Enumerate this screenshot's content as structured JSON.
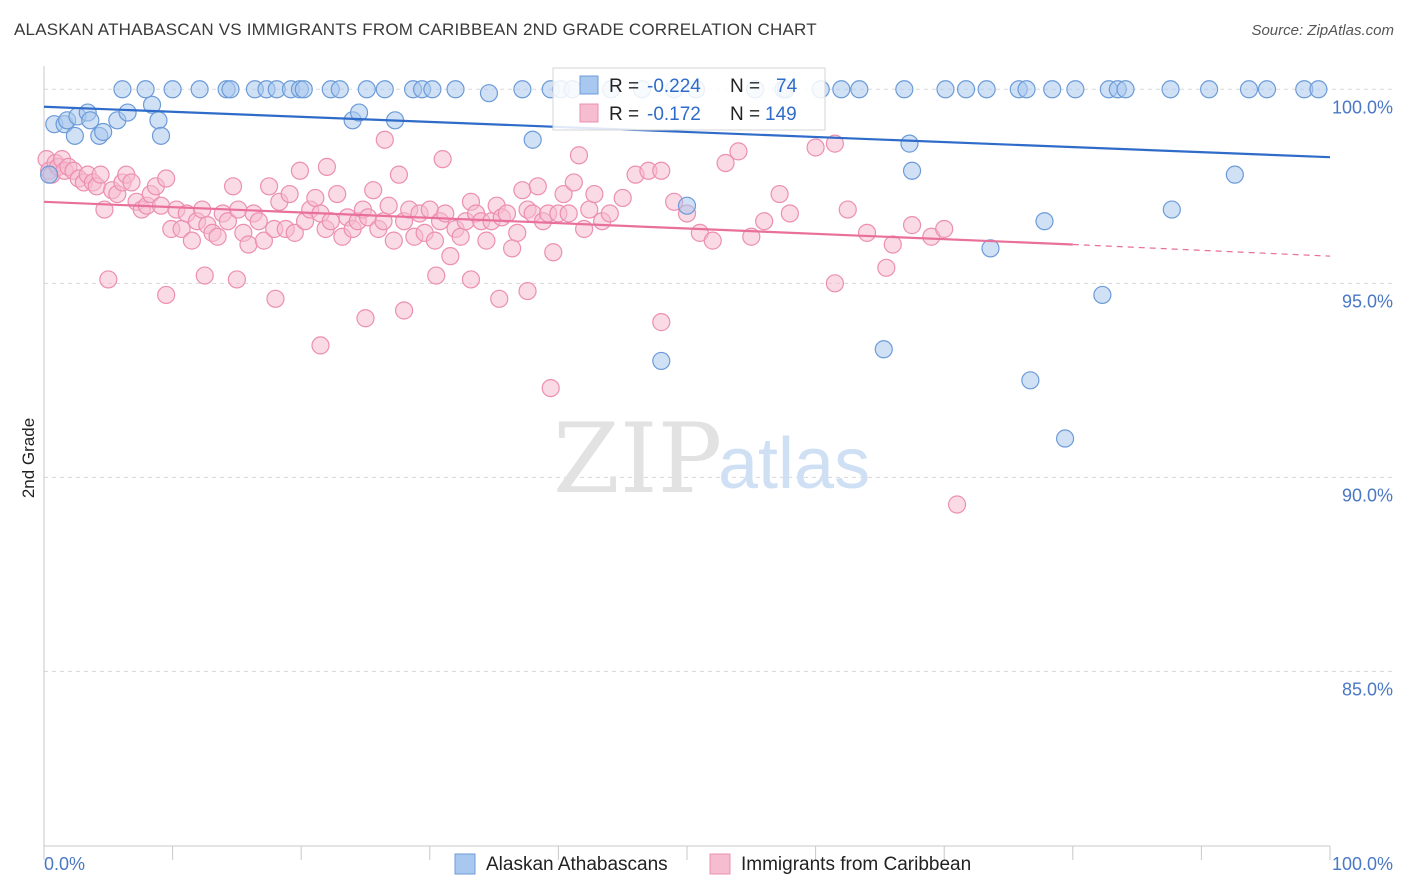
{
  "title": "ALASKAN ATHABASCAN VS IMMIGRANTS FROM CARIBBEAN 2ND GRADE CORRELATION CHART",
  "source": "Source: ZipAtlas.com",
  "watermark": {
    "zip": "ZIP",
    "atlas": "atlas"
  },
  "colors": {
    "blue_fill": "#a9c8ef",
    "blue_stroke": "#6c9bd8",
    "blue_line": "#2f6cc9",
    "pink_fill": "#f6bcd0",
    "pink_stroke": "#ec8fb0",
    "pink_line": "#e8709a",
    "tick_label": "#4a78c4",
    "grid": "#d8d8d8"
  },
  "legend_box": {
    "rows": [
      {
        "r_label": "R =",
        "r_value": "-0.224",
        "n_label": "N =",
        "n_value": "74"
      },
      {
        "r_label": "R =",
        "r_value": "-0.172",
        "n_label": "N =",
        "n_value": "149"
      }
    ]
  },
  "bottom_legend": [
    "Alaskan Athabascans",
    "Immigrants from Caribbean"
  ],
  "chart_data": {
    "type": "scatter",
    "title": "ALASKAN ATHABASCAN VS IMMIGRANTS FROM CARIBBEAN 2ND GRADE CORRELATION CHART",
    "xlabel": "",
    "ylabel": "2nd Grade",
    "xlim": [
      0,
      100
    ],
    "ylim": [
      80.5,
      100.6
    ],
    "x_tick_labels": [
      "0.0%",
      "100.0%"
    ],
    "y_ticks": [
      85,
      90,
      95,
      100
    ],
    "y_tick_labels": [
      "85.0%",
      "90.0%",
      "95.0%",
      "100.0%"
    ],
    "grid": "horizontal dashed",
    "legend_position": "top-center",
    "series": [
      {
        "name": "Alaskan Athabascans",
        "stats": {
          "R": -0.224,
          "N": 74
        },
        "trend": {
          "x": [
            0,
            100
          ],
          "y": [
            99.55,
            98.25
          ]
        },
        "points": [
          [
            0.4,
            97.8
          ],
          [
            0.8,
            99.1
          ],
          [
            1.6,
            99.1
          ],
          [
            1.8,
            99.2
          ],
          [
            2.4,
            98.8
          ],
          [
            2.6,
            99.3
          ],
          [
            3.4,
            99.4
          ],
          [
            3.6,
            99.2
          ],
          [
            4.3,
            98.8
          ],
          [
            4.6,
            98.9
          ],
          [
            5.7,
            99.2
          ],
          [
            6.5,
            99.4
          ],
          [
            8.4,
            99.6
          ],
          [
            8.9,
            99.2
          ],
          [
            9.1,
            98.8
          ],
          [
            6.1,
            100
          ],
          [
            7.9,
            100
          ],
          [
            10.0,
            100
          ],
          [
            12.1,
            100
          ],
          [
            14.2,
            100
          ],
          [
            14.5,
            100
          ],
          [
            16.4,
            100
          ],
          [
            17.3,
            100
          ],
          [
            18.1,
            100
          ],
          [
            19.2,
            100
          ],
          [
            19.9,
            100
          ],
          [
            20.2,
            100
          ],
          [
            22.3,
            100
          ],
          [
            23.0,
            100
          ],
          [
            24.0,
            99.2
          ],
          [
            24.5,
            99.4
          ],
          [
            25.1,
            100
          ],
          [
            26.5,
            100
          ],
          [
            27.3,
            99.2
          ],
          [
            28.7,
            100
          ],
          [
            29.4,
            100
          ],
          [
            30.2,
            100
          ],
          [
            32.0,
            100
          ],
          [
            34.6,
            99.9
          ],
          [
            37.2,
            100
          ],
          [
            38.0,
            98.7
          ],
          [
            39.4,
            100
          ],
          [
            40.2,
            100
          ],
          [
            41.1,
            100
          ],
          [
            44.1,
            100
          ],
          [
            46.5,
            100
          ],
          [
            49.0,
            100
          ],
          [
            50.7,
            100
          ],
          [
            55.3,
            100
          ],
          [
            57.5,
            100
          ],
          [
            57.7,
            100
          ],
          [
            60.4,
            100
          ],
          [
            62.0,
            100
          ],
          [
            63.4,
            100
          ],
          [
            66.9,
            100
          ],
          [
            70.1,
            100
          ],
          [
            71.7,
            100
          ],
          [
            73.3,
            100
          ],
          [
            75.8,
            100
          ],
          [
            76.4,
            100
          ],
          [
            78.4,
            100
          ],
          [
            80.2,
            100
          ],
          [
            82.8,
            100
          ],
          [
            83.5,
            100
          ],
          [
            84.1,
            100
          ],
          [
            87.6,
            100
          ],
          [
            90.6,
            100
          ],
          [
            93.7,
            100
          ],
          [
            95.1,
            100
          ],
          [
            98.0,
            100
          ],
          [
            99.1,
            100
          ],
          [
            50.0,
            97.0
          ],
          [
            48.0,
            93.0
          ],
          [
            67.3,
            98.6
          ],
          [
            67.5,
            97.9
          ],
          [
            73.6,
            95.9
          ],
          [
            76.7,
            92.5
          ],
          [
            77.8,
            96.6
          ],
          [
            79.4,
            91.0
          ],
          [
            82.3,
            94.7
          ],
          [
            87.7,
            96.9
          ],
          [
            92.6,
            97.8
          ],
          [
            65.3,
            93.3
          ]
        ]
      },
      {
        "name": "Immigrants from Caribbean",
        "stats": {
          "R": -0.172,
          "N": 149
        },
        "trend": {
          "x": [
            0,
            80
          ],
          "y": [
            97.1,
            96.0
          ]
        },
        "trend_dashed": {
          "x": [
            80,
            100
          ],
          "y": [
            96.0,
            95.7
          ]
        },
        "points": [
          [
            0.2,
            98.2
          ],
          [
            0.4,
            97.9
          ],
          [
            0.6,
            97.8
          ],
          [
            0.9,
            98.1
          ],
          [
            1.1,
            98.0
          ],
          [
            1.4,
            98.2
          ],
          [
            1.6,
            97.9
          ],
          [
            1.9,
            98.0
          ],
          [
            2.3,
            97.9
          ],
          [
            2.7,
            97.7
          ],
          [
            3.1,
            97.6
          ],
          [
            3.4,
            97.8
          ],
          [
            3.8,
            97.6
          ],
          [
            4.1,
            97.5
          ],
          [
            4.4,
            97.8
          ],
          [
            4.7,
            96.9
          ],
          [
            5.3,
            97.4
          ],
          [
            5.7,
            97.3
          ],
          [
            6.1,
            97.6
          ],
          [
            6.4,
            97.8
          ],
          [
            6.8,
            97.6
          ],
          [
            7.2,
            97.1
          ],
          [
            7.6,
            96.9
          ],
          [
            8.0,
            97.0
          ],
          [
            8.3,
            97.3
          ],
          [
            8.7,
            97.5
          ],
          [
            9.1,
            97.0
          ],
          [
            9.5,
            97.7
          ],
          [
            9.9,
            96.4
          ],
          [
            10.3,
            96.9
          ],
          [
            10.7,
            96.4
          ],
          [
            11.1,
            96.8
          ],
          [
            11.5,
            96.1
          ],
          [
            11.9,
            96.6
          ],
          [
            12.3,
            96.9
          ],
          [
            12.7,
            96.5
          ],
          [
            13.1,
            96.3
          ],
          [
            13.5,
            96.2
          ],
          [
            13.9,
            96.8
          ],
          [
            14.3,
            96.6
          ],
          [
            14.7,
            97.5
          ],
          [
            15.1,
            96.9
          ],
          [
            15.5,
            96.3
          ],
          [
            15.9,
            96.0
          ],
          [
            16.3,
            96.8
          ],
          [
            16.7,
            96.6
          ],
          [
            17.1,
            96.1
          ],
          [
            17.5,
            97.5
          ],
          [
            17.9,
            96.4
          ],
          [
            18.3,
            97.1
          ],
          [
            18.8,
            96.4
          ],
          [
            19.1,
            97.3
          ],
          [
            19.5,
            96.3
          ],
          [
            19.9,
            97.9
          ],
          [
            20.3,
            96.6
          ],
          [
            20.7,
            96.9
          ],
          [
            21.1,
            97.2
          ],
          [
            21.5,
            96.8
          ],
          [
            21.9,
            96.4
          ],
          [
            22.3,
            96.6
          ],
          [
            22.8,
            97.3
          ],
          [
            23.2,
            96.2
          ],
          [
            23.6,
            96.7
          ],
          [
            24.0,
            96.4
          ],
          [
            24.4,
            96.6
          ],
          [
            24.8,
            96.9
          ],
          [
            25.2,
            96.7
          ],
          [
            25.6,
            97.4
          ],
          [
            26.0,
            96.4
          ],
          [
            26.4,
            96.6
          ],
          [
            26.8,
            97.0
          ],
          [
            27.2,
            96.1
          ],
          [
            27.6,
            97.8
          ],
          [
            28.0,
            96.6
          ],
          [
            28.4,
            96.9
          ],
          [
            28.8,
            96.2
          ],
          [
            29.2,
            96.8
          ],
          [
            29.6,
            96.3
          ],
          [
            30.0,
            96.9
          ],
          [
            30.4,
            96.1
          ],
          [
            30.8,
            96.6
          ],
          [
            31.2,
            96.8
          ],
          [
            31.6,
            95.7
          ],
          [
            32.0,
            96.4
          ],
          [
            32.4,
            96.2
          ],
          [
            32.8,
            96.6
          ],
          [
            33.2,
            97.1
          ],
          [
            33.6,
            96.8
          ],
          [
            34.0,
            96.6
          ],
          [
            34.4,
            96.1
          ],
          [
            34.8,
            96.6
          ],
          [
            35.2,
            97.0
          ],
          [
            35.6,
            96.7
          ],
          [
            36.0,
            96.8
          ],
          [
            36.4,
            95.9
          ],
          [
            36.8,
            96.3
          ],
          [
            37.2,
            97.4
          ],
          [
            37.6,
            96.9
          ],
          [
            38.0,
            96.8
          ],
          [
            38.4,
            97.5
          ],
          [
            38.8,
            96.6
          ],
          [
            39.2,
            96.8
          ],
          [
            39.6,
            95.8
          ],
          [
            40.0,
            96.8
          ],
          [
            40.4,
            97.3
          ],
          [
            40.8,
            96.8
          ],
          [
            41.2,
            97.6
          ],
          [
            41.6,
            98.3
          ],
          [
            42.0,
            96.4
          ],
          [
            42.4,
            96.9
          ],
          [
            42.8,
            97.3
          ],
          [
            43.4,
            96.6
          ],
          [
            44.0,
            96.8
          ],
          [
            45.0,
            97.2
          ],
          [
            46.0,
            97.8
          ],
          [
            47.0,
            97.9
          ],
          [
            48.0,
            97.9
          ],
          [
            49.0,
            97.1
          ],
          [
            50.0,
            96.8
          ],
          [
            51.0,
            96.3
          ],
          [
            52.0,
            96.1
          ],
          [
            53.0,
            98.1
          ],
          [
            54.0,
            98.4
          ],
          [
            55.0,
            96.2
          ],
          [
            56.0,
            96.6
          ],
          [
            57.2,
            97.3
          ],
          [
            58.0,
            96.8
          ],
          [
            60.0,
            98.5
          ],
          [
            61.5,
            98.6
          ],
          [
            62.5,
            96.9
          ],
          [
            64.0,
            96.3
          ],
          [
            65.5,
            95.4
          ],
          [
            66.0,
            96.0
          ],
          [
            67.5,
            96.5
          ],
          [
            69.0,
            96.2
          ],
          [
            70.0,
            96.4
          ],
          [
            5.0,
            95.1
          ],
          [
            9.5,
            94.7
          ],
          [
            12.5,
            95.2
          ],
          [
            15.0,
            95.1
          ],
          [
            18.0,
            94.6
          ],
          [
            21.5,
            93.4
          ],
          [
            25.0,
            94.1
          ],
          [
            28.0,
            94.3
          ],
          [
            30.5,
            95.2
          ],
          [
            33.2,
            95.1
          ],
          [
            35.4,
            94.6
          ],
          [
            37.6,
            94.8
          ],
          [
            39.4,
            92.3
          ],
          [
            48.0,
            94.0
          ],
          [
            61.5,
            95.0
          ],
          [
            71.0,
            89.3
          ],
          [
            26.5,
            98.7
          ],
          [
            31.0,
            98.2
          ],
          [
            22.0,
            98.0
          ]
        ]
      }
    ]
  }
}
